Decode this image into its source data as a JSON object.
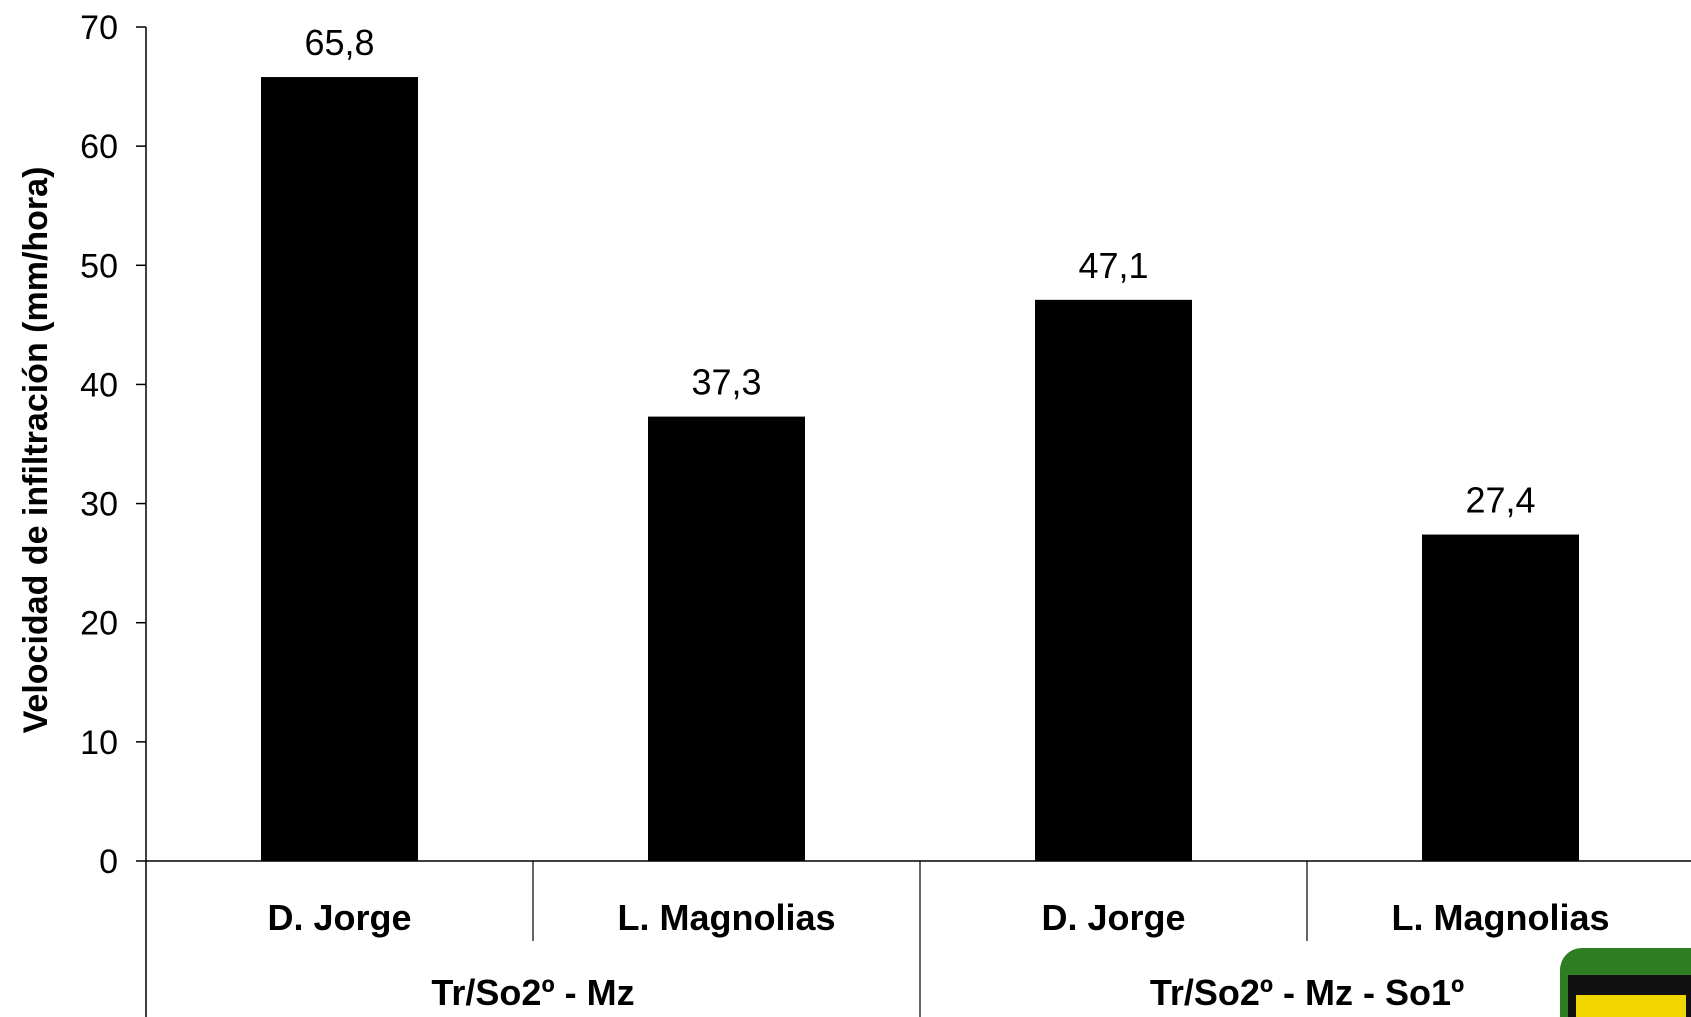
{
  "chart_data": {
    "type": "bar",
    "groups": [
      "Tr/So2º - Mz",
      "Tr/So2º - Mz - So1º"
    ],
    "categories": [
      "D. Jorge",
      "L. Magnolias",
      "D. Jorge",
      "L. Magnolias"
    ],
    "values": [
      65.8,
      37.3,
      47.1,
      27.4
    ],
    "data_labels": [
      "65,8",
      "37,3",
      "47,1",
      "27,4"
    ],
    "title": "",
    "xlabel": "",
    "ylabel": "Velocidad de infiltración (mm/hora)",
    "ylim": [
      0,
      70
    ],
    "yticks": [
      0,
      10,
      20,
      30,
      40,
      50,
      60,
      70
    ],
    "grid": false,
    "legend": "none",
    "bar_color": "#000000"
  }
}
